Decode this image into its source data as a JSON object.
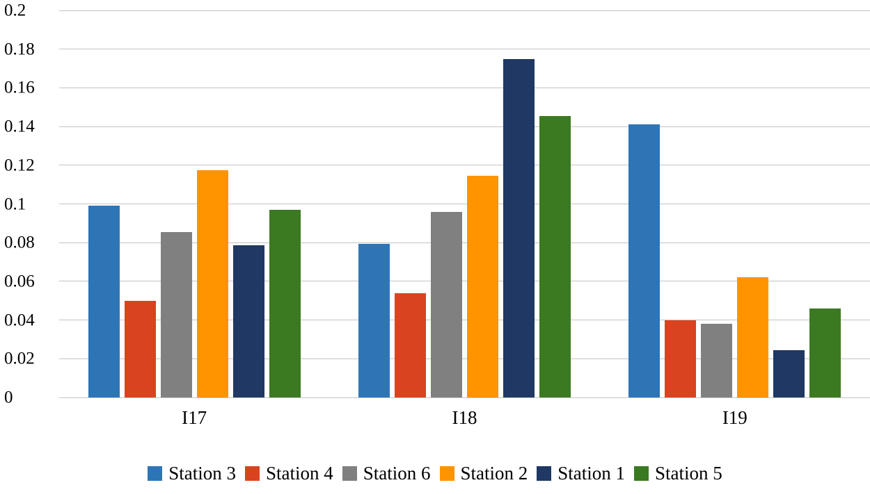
{
  "chart_data": {
    "type": "bar",
    "title": "",
    "xlabel": "",
    "ylabel": "",
    "categories": [
      "I17",
      "I18",
      "I19"
    ],
    "series": [
      {
        "name": "Station 3",
        "color": "#2E75B6",
        "values": [
          0.099,
          0.0795,
          0.141
        ]
      },
      {
        "name": "Station 4",
        "color": "#D9431F",
        "values": [
          0.05,
          0.054,
          0.04
        ]
      },
      {
        "name": "Station 6",
        "color": "#808080",
        "values": [
          0.0855,
          0.096,
          0.038
        ]
      },
      {
        "name": "Station 2",
        "color": "#FF9300",
        "values": [
          0.1175,
          0.1145,
          0.062
        ]
      },
      {
        "name": "Station 1",
        "color": "#1F3864",
        "values": [
          0.0785,
          0.175,
          0.0245
        ]
      },
      {
        "name": "Station 5",
        "color": "#3B7A21",
        "values": [
          0.097,
          0.1455,
          0.046
        ]
      }
    ],
    "ylim": [
      0,
      0.2
    ],
    "ytick_step": 0.02,
    "yticks": [
      0,
      0.02,
      0.04,
      0.06,
      0.08,
      0.1,
      0.12,
      0.14,
      0.16,
      0.18,
      0.2
    ],
    "ytick_labels": [
      "0",
      "0.02",
      "0.04",
      "0.06",
      "0.08",
      "0.1",
      "0.12",
      "0.14",
      "0.16",
      "0.18",
      "0.2"
    ],
    "grid": "horizontal",
    "gridline_color": "#c3c3c3",
    "legend_position": "bottom",
    "legend_entries": [
      "Station 3",
      "Station 4",
      "Station 6",
      "Station 2",
      "Station 1",
      "Station 5"
    ]
  }
}
